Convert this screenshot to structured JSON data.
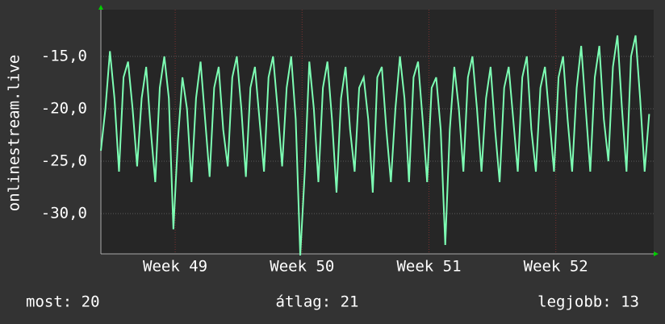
{
  "chart_data": {
    "type": "line",
    "ylabel": "onlinestream.live",
    "color": "#7dffb4",
    "x": [
      0,
      0.25,
      0.5,
      0.75,
      1,
      1.25,
      1.5,
      1.75,
      2,
      2.25,
      2.5,
      2.75,
      3,
      3.25,
      3.5,
      3.75,
      4,
      4.25,
      4.5,
      4.75,
      5,
      5.25,
      5.5,
      5.75,
      6,
      6.25,
      6.5,
      6.75,
      7,
      7.25,
      7.5,
      7.75,
      8,
      8.25,
      8.5,
      8.75,
      9,
      9.25,
      9.5,
      9.75,
      10,
      10.25,
      10.5,
      10.75,
      11,
      11.25,
      11.5,
      11.75,
      12,
      12.25,
      12.5,
      12.75,
      13,
      13.25,
      13.5,
      13.75,
      14,
      14.25,
      14.5,
      14.75,
      15,
      15.25,
      15.5,
      15.75,
      16,
      16.25,
      16.5,
      16.75,
      17,
      17.25,
      17.5,
      17.75,
      18,
      18.25,
      18.5,
      18.75,
      19,
      19.25,
      19.5,
      19.75,
      20,
      20.25,
      20.5,
      20.75,
      21,
      21.25,
      21.5,
      21.75,
      22,
      22.25,
      22.5,
      22.75,
      23,
      23.25,
      23.5,
      23.75,
      24,
      24.25,
      24.5,
      24.75,
      25,
      25.25,
      25.5,
      25.75,
      26,
      26.25,
      26.5,
      26.75,
      27,
      27.25,
      27.5,
      27.75,
      28,
      28.25,
      28.5,
      28.75,
      29,
      29.25,
      29.5,
      29.75,
      30,
      30.25
    ],
    "values": [
      -24,
      -20,
      -14.5,
      -19,
      -26,
      -17,
      -15.5,
      -20,
      -25.5,
      -19,
      -16,
      -22,
      -27,
      -18,
      -15,
      -19,
      -31.5,
      -23,
      -17,
      -20,
      -27,
      -19,
      -15.5,
      -21,
      -26.5,
      -18,
      -16,
      -22,
      -25.5,
      -17,
      -15,
      -20,
      -26.5,
      -18,
      -16,
      -21,
      -26,
      -17,
      -15,
      -20,
      -25.5,
      -18,
      -15,
      -21,
      -34,
      -26,
      -15.5,
      -20,
      -27,
      -18,
      -15.5,
      -21,
      -28,
      -19,
      -16,
      -22,
      -26,
      -18,
      -17,
      -21,
      -28,
      -17,
      -16,
      -22,
      -27,
      -20,
      -15,
      -19,
      -27,
      -17,
      -15.5,
      -21,
      -27,
      -18,
      -17,
      -22,
      -33,
      -22,
      -16,
      -20,
      -26,
      -17,
      -15,
      -20,
      -26,
      -19,
      -16,
      -22,
      -27,
      -18,
      -16,
      -21,
      -26,
      -17,
      -15,
      -22,
      -26,
      -18,
      -16,
      -21,
      -26,
      -17,
      -15,
      -21,
      -26,
      -18,
      -14,
      -20,
      -26,
      -17,
      -14,
      -21,
      -25,
      -16,
      -13,
      -20,
      -26,
      -15,
      -13,
      -19,
      -26,
      -20.5
    ],
    "xlim": [
      0,
      30.5
    ],
    "xticks": [
      {
        "value": 4.1,
        "label": "Week 49"
      },
      {
        "value": 11.1,
        "label": "Week 50"
      },
      {
        "value": 18.1,
        "label": "Week 51"
      },
      {
        "value": 25.1,
        "label": "Week 52"
      }
    ],
    "ylim": [
      -33.85,
      -10.54
    ],
    "yticks": [
      {
        "value": -30,
        "label": "-30,0"
      },
      {
        "value": -25,
        "label": "-25,0"
      },
      {
        "value": -20,
        "label": "-20,0"
      },
      {
        "value": -15,
        "label": "-15,0"
      }
    ],
    "grid": true,
    "footer": [
      "most: 20",
      "átlag: 21",
      "legjobb: 13"
    ]
  }
}
